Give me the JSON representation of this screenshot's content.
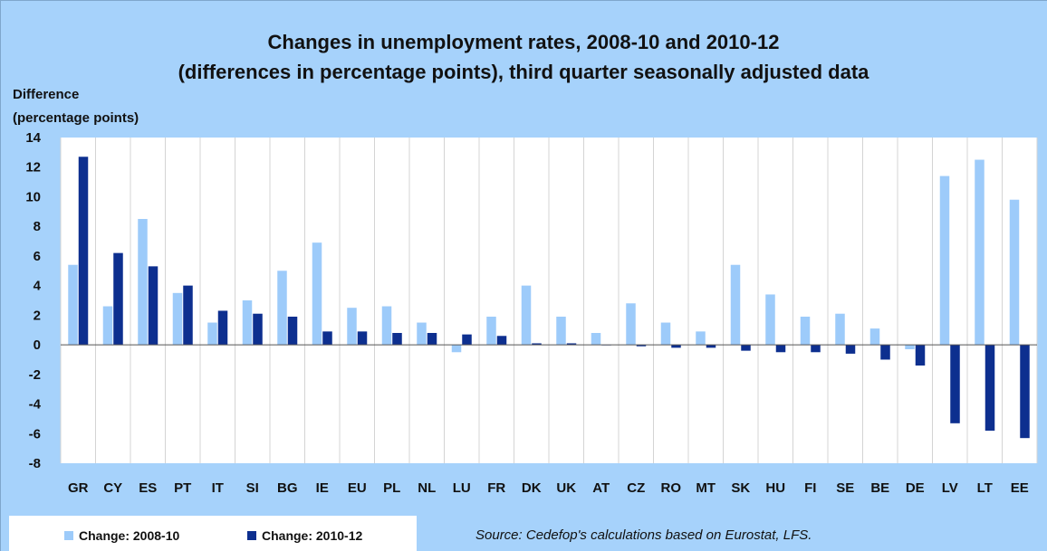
{
  "chart_data": {
    "type": "bar",
    "title": [
      "Changes in unemployment rates, 2008-10 and 2010-12",
      "(differences in percentage points),  third quarter seasonally adjusted data"
    ],
    "ylabel": [
      "Difference",
      "(percentage points)"
    ],
    "xlabel": "",
    "ylim": [
      -8,
      14
    ],
    "yticks": [
      14,
      12,
      10,
      8,
      6,
      4,
      2,
      0,
      -2,
      -4,
      -6,
      -8
    ],
    "grid": "vertical",
    "legend_position": "bottom-left",
    "categories": [
      "GR",
      "CY",
      "ES",
      "PT",
      "IT",
      "SI",
      "BG",
      "IE",
      "EU",
      "PL",
      "NL",
      "LU",
      "FR",
      "DK",
      "UK",
      "AT",
      "CZ",
      "RO",
      "MT",
      "SK",
      "HU",
      "FI",
      "SE",
      "BE",
      "DE",
      "LV",
      "LT",
      "EE"
    ],
    "series": [
      {
        "name": "Change: 2008-10",
        "color": "#9dcbfa",
        "values": [
          5.4,
          2.6,
          8.5,
          3.5,
          1.5,
          3.0,
          5.0,
          6.9,
          2.5,
          2.6,
          1.5,
          -0.5,
          1.9,
          4.0,
          1.9,
          0.8,
          2.8,
          1.5,
          0.9,
          5.4,
          3.4,
          1.9,
          2.1,
          1.1,
          -0.3,
          11.4,
          12.5,
          9.8
        ]
      },
      {
        "name": "Change: 2010-12",
        "color": "#0d2f8f",
        "values": [
          12.7,
          6.2,
          5.3,
          4.0,
          2.3,
          2.1,
          1.9,
          0.9,
          0.9,
          0.8,
          0.8,
          0.7,
          0.6,
          0.1,
          0.1,
          0.0,
          -0.1,
          -0.2,
          -0.2,
          -0.4,
          -0.5,
          -0.5,
          -0.6,
          -1.0,
          -1.4,
          -5.3,
          -5.8,
          -6.3
        ]
      }
    ],
    "source": "Source: Cedefop's calculations based on Eurostat, LFS."
  }
}
